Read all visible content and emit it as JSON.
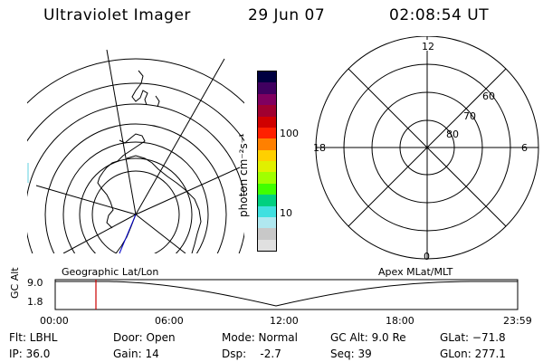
{
  "header": {
    "title": "Ultraviolet Imager",
    "date": "29 Jun 07",
    "time": "02:08:54 UT"
  },
  "colorbar": {
    "unit": "photon cm⁻²s⁻¹",
    "tick_100": "100",
    "tick_10": "10",
    "colors": [
      "#e0e0e0",
      "#c8c8c8",
      "#b0e8f0",
      "#40e0e0",
      "#00d080",
      "#40ff00",
      "#a0ff00",
      "#e0f000",
      "#ffd000",
      "#ff8000",
      "#ff2000",
      "#d00000",
      "#a00030",
      "#800060",
      "#400060",
      "#000040"
    ]
  },
  "polar_plot": {
    "mlt_12": "12",
    "mlt_18": "18",
    "mlt_6": "6",
    "mlt_0": "0",
    "lat_60": "60",
    "lat_70": "70",
    "lat_80": "80"
  },
  "timeline": {
    "left_label": "Geographic Lat/Lon",
    "right_label": "Apex MLat/MLT",
    "axis_label": "GC Alt",
    "y_top": "9.0",
    "y_bottom": "1.8",
    "ticks": [
      "00:00",
      "06:00",
      "12:00",
      "18:00",
      "23:59"
    ],
    "cursor_color": "#cc0000"
  },
  "info": {
    "filter": "Flt: LBHL",
    "ip": "IP: 36.0",
    "door": "Door: Open",
    "gain": "Gain: 14",
    "mode": "Mode: Normal",
    "dsp": "Dsp:    -2.7",
    "gc_alt": "GC Alt: 9.0 Re",
    "seq": "Seq: 39",
    "glat": "GLat: −71.8",
    "glon": "GLon: 277.1"
  }
}
